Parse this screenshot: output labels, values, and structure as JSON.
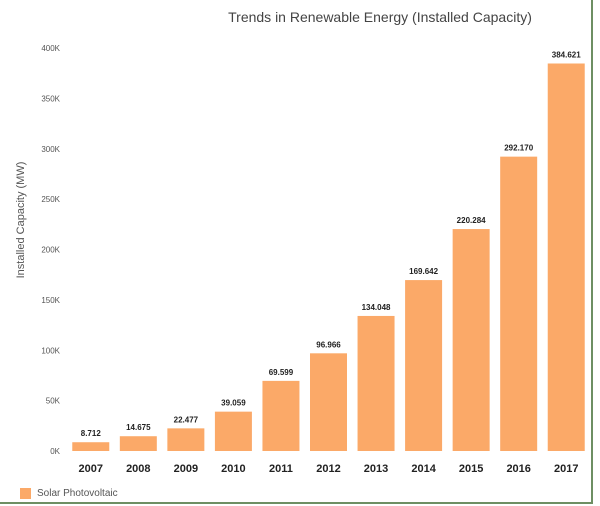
{
  "chart_data": {
    "type": "bar",
    "title": "Trends in Renewable Energy (Installed Capacity)",
    "ylabel": "Installed Capacity (MW)",
    "xlabel": "",
    "categories": [
      "2007",
      "2008",
      "2009",
      "2010",
      "2011",
      "2012",
      "2013",
      "2014",
      "2015",
      "2016",
      "2017"
    ],
    "series": [
      {
        "name": "Solar Photovoltaic",
        "values": [
          8.712,
          14.675,
          22.477,
          39.059,
          69.599,
          96.966,
          134.048,
          169.642,
          220.284,
          292.17,
          384.621
        ],
        "data_labels": [
          "8.712",
          "14.675",
          "22.477",
          "39.059",
          "69.599",
          "96.966",
          "134.048",
          "169.642",
          "220.284",
          "292.170",
          "384.621"
        ],
        "color": "#fba968"
      }
    ],
    "y_unit_note": "values in thousands of MW (axis shows K)",
    "ylim": [
      0,
      400
    ],
    "yticks": [
      "0K",
      "50K",
      "100K",
      "150K",
      "200K",
      "250K",
      "300K",
      "350K",
      "400K"
    ],
    "grid": false,
    "legend_position": "bottom-left"
  }
}
